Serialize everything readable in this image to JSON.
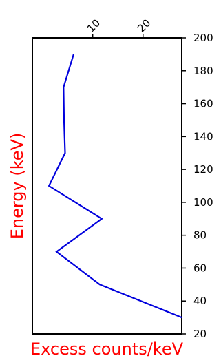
{
  "chart_data": {
    "type": "line",
    "orientation": "rotated",
    "ylabel": "Energy (keV)",
    "xlabel": "Excess counts/keV",
    "label_color": "#ff0000",
    "series": [
      {
        "color": "#0000dd",
        "energy": [
          30,
          50,
          70,
          90,
          110,
          130,
          150,
          170,
          190
        ],
        "counts": [
          27.7,
          11.4,
          2.8,
          11.8,
          1.3,
          4.5,
          4.3,
          4.2,
          6.2
        ]
      }
    ],
    "counts_range": [
      -2,
      27.7
    ],
    "counts_ticks": [
      "10",
      "20"
    ],
    "counts_tick_values": [
      10,
      20
    ],
    "energy_range": [
      20,
      200
    ],
    "energy_ticks": [
      "20",
      "40",
      "60",
      "80",
      "100",
      "120",
      "140",
      "160",
      "180",
      "200"
    ],
    "energy_tick_values": [
      20,
      40,
      60,
      80,
      100,
      120,
      140,
      160,
      180,
      200
    ],
    "grid": false,
    "legend": "none"
  }
}
